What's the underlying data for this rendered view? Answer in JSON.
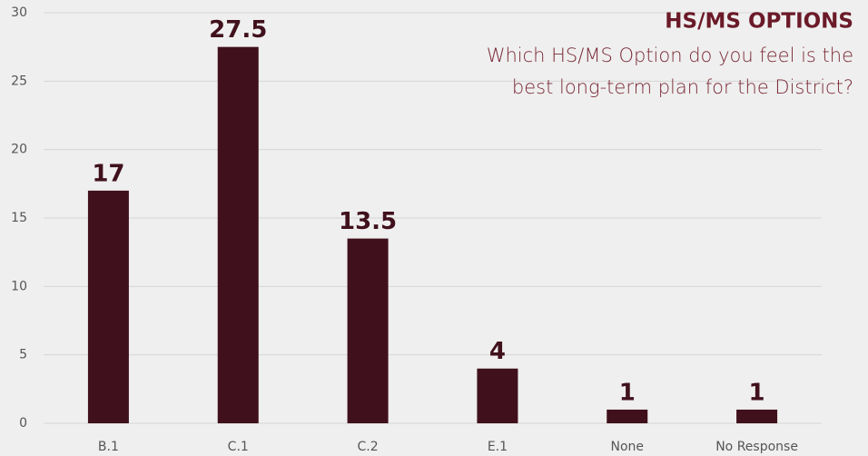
{
  "chart_data": {
    "type": "bar",
    "title": "HS/MS OPTIONS",
    "subtitle": [
      "Which HS/MS Option do you feel is the",
      "best long-term plan for the District?"
    ],
    "categories": [
      "B.1",
      "C.1",
      "C.2",
      "E.1",
      "None",
      "No Response"
    ],
    "values": [
      17,
      27.5,
      13.5,
      4,
      1,
      1
    ],
    "color": "#40111c",
    "ylim": [
      0,
      30
    ],
    "yticks": [
      0,
      5,
      10,
      15,
      20,
      25,
      30
    ],
    "grid": true
  }
}
